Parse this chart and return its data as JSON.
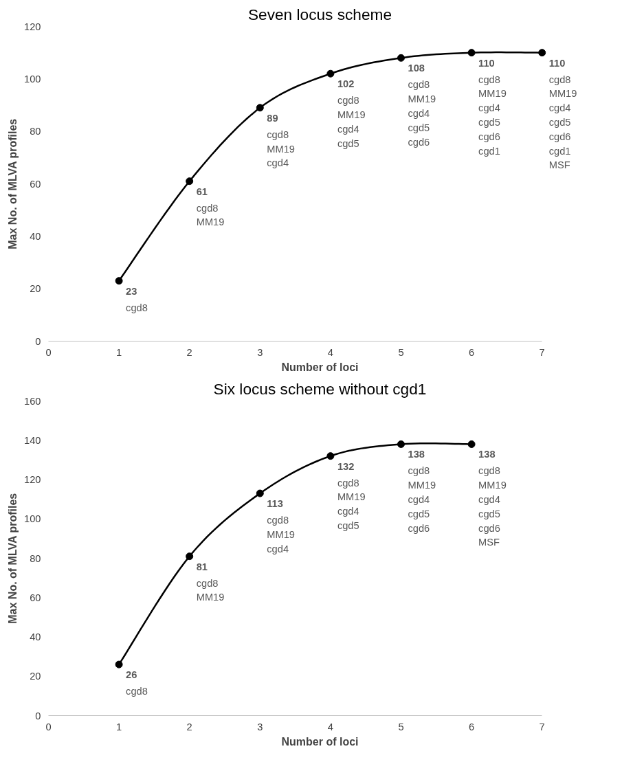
{
  "chart_data": [
    {
      "type": "line",
      "title": "Seven locus scheme",
      "xlabel": "Number of loci",
      "ylabel": "Max No. of MLVA profiles",
      "x": [
        1,
        2,
        3,
        4,
        5,
        6,
        7
      ],
      "series": [
        {
          "color": "#000000",
          "values": [
            23,
            61,
            89,
            102,
            108,
            110,
            110
          ]
        }
      ],
      "xlim": [
        0,
        7
      ],
      "xticks": [
        0,
        1,
        2,
        3,
        4,
        5,
        6,
        7
      ],
      "ylim": [
        0,
        120
      ],
      "yticks": [
        0,
        20,
        40,
        60,
        80,
        100,
        120
      ],
      "grid": false,
      "marker": "circle",
      "data_labels": true,
      "annotations": [
        {
          "text": "cgd8",
          "x": 1,
          "y": 23
        },
        {
          "text": "cgd8\nMM19",
          "x": 2,
          "y": 61
        },
        {
          "text": "cgd8\nMM19\ncgd4",
          "x": 3,
          "y": 89
        },
        {
          "text": "cgd8\nMM19\ncgd4\ncgd5",
          "x": 4,
          "y": 102
        },
        {
          "text": "cgd8\nMM19\ncgd4\ncgd5\ncgd6",
          "x": 5,
          "y": 108
        },
        {
          "text": "cgd8\nMM19\ncgd4\ncgd5\ncgd6\ncgd1",
          "x": 6,
          "y": 110
        },
        {
          "text": "cgd8\nMM19\ncgd4\ncgd5\ncgd6\ncgd1\nMSF",
          "x": 7,
          "y": 110
        }
      ]
    },
    {
      "type": "line",
      "title": "Six locus scheme without cgd1",
      "xlabel": "Number of loci",
      "ylabel": "Max No. of MLVA profiles",
      "x": [
        1,
        2,
        3,
        4,
        5,
        6
      ],
      "series": [
        {
          "color": "#000000",
          "values": [
            26,
            81,
            113,
            132,
            138,
            138
          ]
        }
      ],
      "xlim": [
        0,
        7
      ],
      "xticks": [
        0,
        1,
        2,
        3,
        4,
        5,
        6,
        7
      ],
      "ylim": [
        0,
        160
      ],
      "yticks": [
        0,
        20,
        40,
        60,
        80,
        100,
        120,
        140,
        160
      ],
      "grid": false,
      "marker": "circle",
      "data_labels": true,
      "annotations": [
        {
          "text": "cgd8",
          "x": 1,
          "y": 26
        },
        {
          "text": "cgd8\nMM19",
          "x": 2,
          "y": 81
        },
        {
          "text": "cgd8\nMM19\ncgd4",
          "x": 3,
          "y": 113
        },
        {
          "text": "cgd8\nMM19\ncgd4\ncgd5",
          "x": 4,
          "y": 132
        },
        {
          "text": "cgd8\nMM19\ncgd4\ncgd5\ncgd6",
          "x": 5,
          "y": 138
        },
        {
          "text": "cgd8\nMM19\ncgd4\ncgd5\ncgd6\nMSF",
          "x": 6,
          "y": 138
        }
      ]
    }
  ]
}
